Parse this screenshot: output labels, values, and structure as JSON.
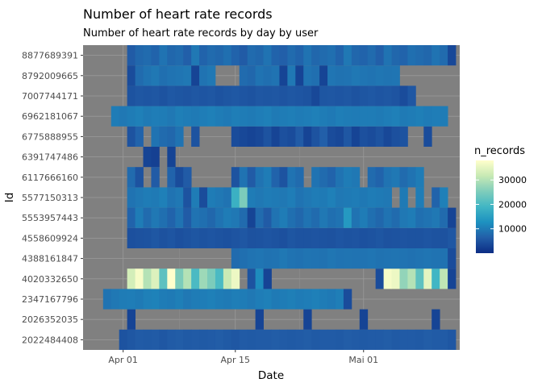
{
  "chart_data": {
    "type": "heatmap",
    "title": "Number of heart rate records",
    "subtitle": "Number of heart rate records by day by user",
    "xlabel": "Date",
    "ylabel": "Id",
    "x_ticks": [
      {
        "date": "2016-04-01",
        "label": "Apr 01"
      },
      {
        "date": "2016-04-15",
        "label": "Apr 15"
      },
      {
        "date": "2016-05-01",
        "label": "Mai 01"
      }
    ],
    "x_range": [
      "2016-03-27",
      "2016-05-13"
    ],
    "legend": {
      "title": "n_records",
      "position": "right",
      "min": 0,
      "max": 38000,
      "ticks": [
        10000,
        20000,
        30000
      ],
      "tick_labels": [
        "10000",
        "20000",
        "30000"
      ],
      "colors": [
        "#0c2c84",
        "#225ea8",
        "#1d91c0",
        "#41b6c4",
        "#7fcdbb",
        "#c7e9b4",
        "#ffffcc"
      ]
    },
    "panel_background": "#808080",
    "grid": true,
    "dates": [
      "2016-03-29",
      "2016-03-30",
      "2016-03-31",
      "2016-04-01",
      "2016-04-02",
      "2016-04-03",
      "2016-04-04",
      "2016-04-05",
      "2016-04-06",
      "2016-04-07",
      "2016-04-08",
      "2016-04-09",
      "2016-04-10",
      "2016-04-11",
      "2016-04-12",
      "2016-04-13",
      "2016-04-14",
      "2016-04-15",
      "2016-04-16",
      "2016-04-17",
      "2016-04-18",
      "2016-04-19",
      "2016-04-20",
      "2016-04-21",
      "2016-04-22",
      "2016-04-23",
      "2016-04-24",
      "2016-04-25",
      "2016-04-26",
      "2016-04-27",
      "2016-04-28",
      "2016-04-29",
      "2016-04-30",
      "2016-05-01",
      "2016-05-02",
      "2016-05-03",
      "2016-05-04",
      "2016-05-05",
      "2016-05-06",
      "2016-05-07",
      "2016-05-08",
      "2016-05-09",
      "2016-05-10",
      "2016-05-11",
      "2016-05-12"
    ],
    "users": [
      {
        "id": "2022484408",
        "values": [
          null,
          null,
          null,
          5000,
          5500,
          6000,
          5800,
          6000,
          5500,
          6000,
          6200,
          5800,
          6000,
          5800,
          6000,
          6200,
          5800,
          5500,
          6000,
          5800,
          6000,
          6000,
          6200,
          6000,
          5800,
          6000,
          6200,
          5800,
          6000,
          6000,
          5800,
          6200,
          6000,
          5800,
          6000,
          6000,
          6200,
          5800,
          6000,
          6000,
          5800,
          6200,
          6000,
          6000,
          5500
        ]
      },
      {
        "id": "2026352035",
        "values": [
          null,
          null,
          null,
          null,
          3000,
          null,
          null,
          null,
          null,
          null,
          null,
          null,
          null,
          null,
          null,
          null,
          null,
          null,
          null,
          null,
          3000,
          null,
          null,
          null,
          null,
          null,
          3000,
          null,
          null,
          null,
          null,
          null,
          null,
          3000,
          null,
          null,
          null,
          null,
          null,
          null,
          null,
          null,
          3000,
          null,
          null
        ]
      },
      {
        "id": "2347167796",
        "values": [
          null,
          9000,
          9500,
          10000,
          10200,
          9800,
          10500,
          10800,
          10000,
          9800,
          10400,
          9500,
          10000,
          10200,
          10600,
          10000,
          9800,
          10300,
          10000,
          9500,
          10200,
          10500,
          9800,
          10000,
          10400,
          9900,
          10200,
          10600,
          10000,
          9700,
          10300,
          4000,
          null,
          null,
          null,
          null,
          null,
          null,
          null,
          null,
          null,
          null,
          null,
          null,
          null
        ]
      },
      {
        "id": "4020332650",
        "values": [
          null,
          null,
          null,
          null,
          33000,
          37000,
          30000,
          34000,
          22000,
          38000,
          25000,
          30000,
          20000,
          28000,
          25000,
          20000,
          32000,
          36000,
          null,
          5000,
          12000,
          3000,
          null,
          null,
          null,
          null,
          null,
          null,
          null,
          null,
          null,
          null,
          null,
          null,
          null,
          4000,
          37000,
          36000,
          27000,
          30000,
          22000,
          35000,
          19000,
          31000,
          3000
        ]
      },
      {
        "id": "4388161847",
        "values": [
          null,
          null,
          null,
          null,
          null,
          null,
          null,
          null,
          null,
          null,
          null,
          null,
          null,
          null,
          null,
          null,
          null,
          8000,
          8500,
          9000,
          9200,
          8800,
          9000,
          9500,
          9000,
          8700,
          9100,
          9000,
          8800,
          9300,
          9000,
          9100,
          8900,
          9000,
          9200,
          8800,
          9000,
          9100,
          9000,
          8700,
          9000,
          9200,
          9000,
          8800,
          4000
        ]
      },
      {
        "id": "4558609924",
        "values": [
          null,
          null,
          null,
          null,
          4500,
          4800,
          5000,
          5500,
          4800,
          5200,
          4500,
          5000,
          5300,
          4900,
          5200,
          5000,
          4700,
          5100,
          5400,
          4800,
          5000,
          5200,
          5000,
          4600,
          5300,
          5000,
          4900,
          5100,
          5000,
          4800,
          5200,
          5000,
          5100,
          4700,
          5000,
          5300,
          4800,
          5000,
          5100,
          4900,
          5000,
          5200,
          5000,
          4800,
          5500
        ]
      },
      {
        "id": "5553957443",
        "values": [
          null,
          null,
          null,
          null,
          7000,
          10000,
          8000,
          9500,
          8500,
          7000,
          9000,
          6000,
          9000,
          8500,
          7500,
          9000,
          10000,
          9500,
          8000,
          3000,
          8000,
          6000,
          9000,
          10000,
          8500,
          7500,
          9000,
          8000,
          9500,
          8500,
          9000,
          14000,
          9000,
          10000,
          8500,
          7500,
          9000,
          8000,
          9500,
          10000,
          8500,
          9000,
          9500,
          8000,
          3000
        ]
      },
      {
        "id": "5577150313",
        "values": [
          null,
          null,
          null,
          null,
          9000,
          9500,
          10000,
          9800,
          10500,
          9000,
          9500,
          5000,
          10000,
          4000,
          10000,
          9500,
          9000,
          18000,
          25000,
          10000,
          9500,
          10000,
          9800,
          9500,
          10200,
          9000,
          9500,
          10000,
          9800,
          10500,
          9500,
          9800,
          10000,
          9600,
          10000,
          9800,
          9500,
          null,
          9800,
          null,
          10200,
          null,
          7000,
          10500,
          null
        ]
      },
      {
        "id": "6117666160",
        "values": [
          null,
          null,
          null,
          null,
          8000,
          5000,
          null,
          6000,
          null,
          7000,
          4000,
          6000,
          null,
          null,
          null,
          null,
          null,
          5000,
          9000,
          6000,
          9000,
          10000,
          7000,
          5000,
          9000,
          8000,
          null,
          9000,
          8000,
          7000,
          9000,
          10000,
          9500,
          null,
          8000,
          7000,
          9000,
          9500,
          8000,
          9000,
          10000,
          null,
          null,
          null,
          null
        ]
      },
      {
        "id": "6391747486",
        "values": [
          null,
          null,
          null,
          null,
          null,
          null,
          3000,
          2500,
          null,
          3000,
          null,
          null,
          null,
          null,
          null,
          null,
          null,
          null,
          null,
          null,
          null,
          null,
          null,
          null,
          null,
          null,
          null,
          null,
          null,
          null,
          null,
          null,
          null,
          null,
          null,
          null,
          null,
          null,
          null,
          null,
          null,
          null,
          null,
          null,
          null
        ]
      },
      {
        "id": "6775888955",
        "values": [
          null,
          null,
          null,
          null,
          5000,
          7000,
          null,
          9000,
          8000,
          7500,
          9000,
          null,
          5000,
          null,
          null,
          null,
          null,
          4000,
          3500,
          3000,
          3500,
          5000,
          3000,
          4500,
          4000,
          6000,
          3000,
          5000,
          6500,
          4000,
          3500,
          5500,
          3000,
          4500,
          4000,
          5000,
          3500,
          4500,
          5000,
          null,
          null,
          4000,
          null,
          null,
          null
        ]
      },
      {
        "id": "6962181067",
        "values": [
          null,
          null,
          10000,
          9500,
          10000,
          10500,
          9800,
          10200,
          10000,
          9500,
          10400,
          10000,
          9800,
          10200,
          10600,
          10000,
          9700,
          10300,
          10000,
          9800,
          10200,
          10500,
          9800,
          10000,
          10300,
          9900,
          10200,
          10600,
          10000,
          9700,
          10300,
          10000,
          9900,
          10100,
          10000,
          9800,
          10200,
          10500,
          9800,
          10000,
          10400,
          9900,
          10200,
          10000,
          null
        ]
      },
      {
        "id": "7007744171",
        "values": [
          null,
          null,
          null,
          null,
          5000,
          5500,
          5200,
          5400,
          5000,
          5600,
          5300,
          5100,
          5500,
          5200,
          5400,
          5000,
          5300,
          5600,
          5200,
          5000,
          5400,
          5300,
          5500,
          5100,
          5400,
          5200,
          5000,
          3500,
          5300,
          5500,
          5200,
          5400,
          5000,
          5300,
          5600,
          5200,
          5400,
          5100,
          4000,
          5500,
          null,
          null,
          null,
          null,
          null
        ]
      },
      {
        "id": "8792009665",
        "values": [
          null,
          null,
          null,
          null,
          4000,
          8000,
          9000,
          9500,
          8500,
          9000,
          9200,
          9500,
          3000,
          9000,
          9500,
          null,
          null,
          null,
          8000,
          7500,
          9000,
          8500,
          9000,
          3000,
          9500,
          3000,
          9000,
          8500,
          3000,
          9200,
          8800,
          9000,
          9500,
          9200,
          9000,
          9300,
          9100,
          9200,
          null,
          null,
          null,
          null,
          null,
          null,
          null
        ]
      },
      {
        "id": "8877689391",
        "values": [
          null,
          null,
          null,
          null,
          6000,
          7500,
          8000,
          7000,
          9000,
          7500,
          8000,
          6500,
          9500,
          7000,
          8000,
          7500,
          8500,
          7000,
          6000,
          8000,
          7500,
          9000,
          7000,
          6500,
          8000,
          7000,
          9000,
          7500,
          8000,
          8500,
          7000,
          9500,
          7500,
          7000,
          8000,
          6500,
          9000,
          7500,
          7000,
          8500,
          8000,
          7500,
          9000,
          8000,
          3500
        ]
      }
    ]
  }
}
